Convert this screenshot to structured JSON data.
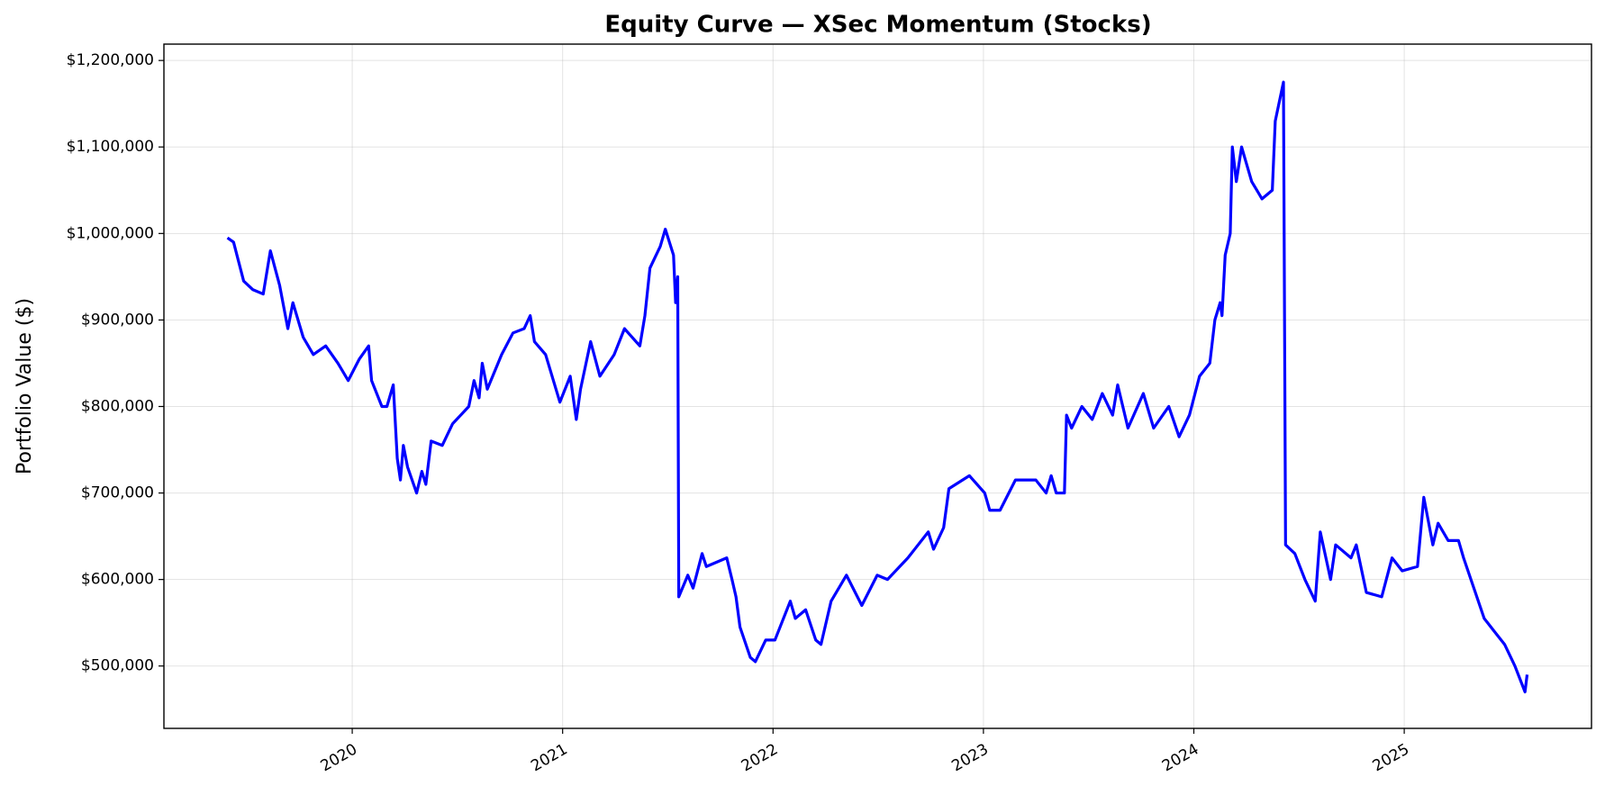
{
  "chart_data": {
    "type": "line",
    "title": "Equity Curve — XSec Momentum (Stocks)",
    "y_label": "Portfolio Value ($)",
    "color": "#0000ff",
    "grid": true,
    "xlim": [
      2019.105,
      2025.89
    ],
    "xticks": [
      2020,
      2021,
      2022,
      2023,
      2024,
      2025
    ],
    "ylim": [
      427900,
      1218900
    ],
    "yticks": [
      {
        "value": 500000,
        "label": "$500,000"
      },
      {
        "value": 600000,
        "label": "$600,000"
      },
      {
        "value": 700000,
        "label": "$700,000"
      },
      {
        "value": 800000,
        "label": "$800,000"
      },
      {
        "value": 900000,
        "label": "$900,000"
      },
      {
        "value": 1000000,
        "label": "$1,000,000"
      },
      {
        "value": 1100000,
        "label": "$1,100,000"
      },
      {
        "value": 1200000,
        "label": "$1,200,000"
      }
    ],
    "x": [
      2019.407,
      2019.436,
      2019.484,
      2019.528,
      2019.577,
      2019.611,
      2019.655,
      2019.694,
      2019.718,
      2019.767,
      2019.815,
      2019.874,
      2019.932,
      2019.981,
      2020.034,
      2020.078,
      2020.092,
      2020.141,
      2020.165,
      2020.195,
      2020.214,
      2020.229,
      2020.243,
      2020.263,
      2020.306,
      2020.331,
      2020.35,
      2020.375,
      2020.428,
      2020.477,
      2020.554,
      2020.579,
      2020.603,
      2020.618,
      2020.642,
      2020.71,
      2020.764,
      2020.817,
      2020.846,
      2020.866,
      2020.919,
      2020.987,
      2021.036,
      2021.065,
      2021.085,
      2021.133,
      2021.177,
      2021.245,
      2021.294,
      2021.367,
      2021.391,
      2021.415,
      2021.464,
      2021.488,
      2021.527,
      2021.537,
      2021.547,
      2021.552,
      2021.595,
      2021.62,
      2021.663,
      2021.683,
      2021.78,
      2021.805,
      2021.824,
      2021.843,
      2021.892,
      2021.916,
      2021.965,
      2022.009,
      2022.082,
      2022.106,
      2022.155,
      2022.203,
      2022.228,
      2022.276,
      2022.349,
      2022.422,
      2022.495,
      2022.544,
      2022.641,
      2022.738,
      2022.763,
      2022.811,
      2022.836,
      2022.933,
      2023.006,
      2023.03,
      2023.079,
      2023.152,
      2023.249,
      2023.298,
      2023.322,
      2023.346,
      2023.385,
      2023.395,
      2023.419,
      2023.468,
      2023.517,
      2023.565,
      2023.614,
      2023.638,
      2023.687,
      2023.76,
      2023.809,
      2023.881,
      2023.93,
      2023.979,
      2024.027,
      2024.076,
      2024.1,
      2024.125,
      2024.134,
      2024.149,
      2024.173,
      2024.183,
      2024.202,
      2024.227,
      2024.275,
      2024.324,
      2024.373,
      2024.387,
      2024.426,
      2024.436,
      2024.48,
      2024.528,
      2024.577,
      2024.601,
      2024.65,
      2024.674,
      2024.747,
      2024.772,
      2024.82,
      2024.893,
      2024.942,
      2024.99,
      2025.063,
      2025.093,
      2025.136,
      2025.161,
      2025.209,
      2025.258,
      2025.282,
      2025.331,
      2025.38,
      2025.428,
      2025.477,
      2025.526,
      2025.574,
      2025.584
    ],
    "values": [
      995000,
      990000,
      945000,
      935000,
      930000,
      980000,
      940000,
      890000,
      920000,
      880000,
      860000,
      870000,
      850000,
      830000,
      855000,
      870000,
      830000,
      800000,
      800000,
      825000,
      740000,
      715000,
      755000,
      730000,
      700000,
      725000,
      710000,
      760000,
      755000,
      780000,
      800000,
      830000,
      810000,
      850000,
      820000,
      860000,
      885000,
      890000,
      905000,
      875000,
      860000,
      805000,
      835000,
      785000,
      820000,
      875000,
      835000,
      860000,
      890000,
      870000,
      905000,
      960000,
      985000,
      1005000,
      975000,
      920000,
      950000,
      580000,
      605000,
      590000,
      630000,
      615000,
      625000,
      600000,
      580000,
      545000,
      510000,
      505000,
      530000,
      530000,
      575000,
      555000,
      565000,
      530000,
      525000,
      575000,
      605000,
      570000,
      605000,
      600000,
      625000,
      655000,
      635000,
      660000,
      705000,
      720000,
      700000,
      680000,
      680000,
      715000,
      715000,
      700000,
      720000,
      700000,
      700000,
      790000,
      775000,
      800000,
      785000,
      815000,
      790000,
      825000,
      775000,
      815000,
      775000,
      800000,
      765000,
      790000,
      835000,
      850000,
      900000,
      920000,
      905000,
      975000,
      1000000,
      1100000,
      1060000,
      1100000,
      1060000,
      1040000,
      1050000,
      1130000,
      1175000,
      640000,
      630000,
      600000,
      575000,
      655000,
      600000,
      640000,
      625000,
      640000,
      585000,
      580000,
      625000,
      610000,
      615000,
      695000,
      640000,
      665000,
      645000,
      645000,
      625000,
      590000,
      555000,
      540000,
      525000,
      500000,
      470000,
      490000
    ]
  }
}
